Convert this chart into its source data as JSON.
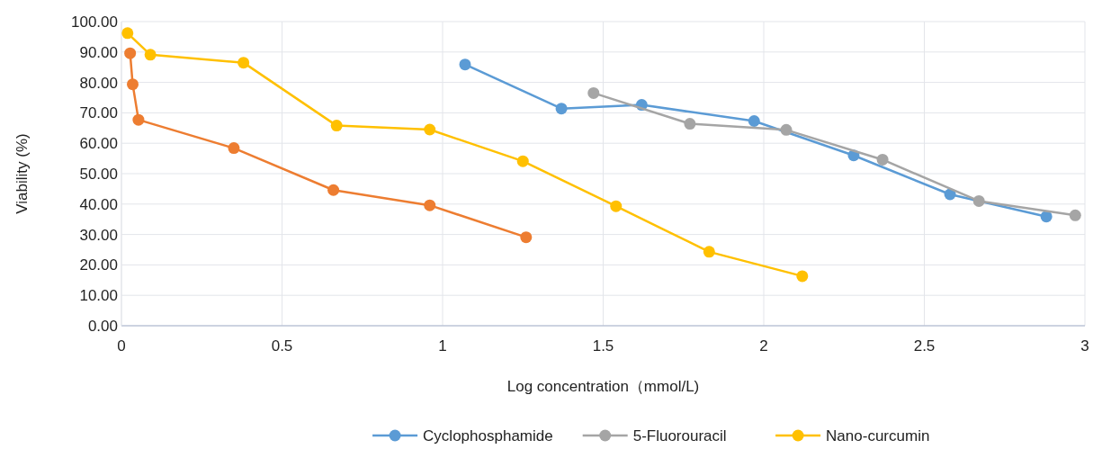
{
  "chart_data": {
    "type": "line",
    "xlabel": "Log concentration（mmol/L)",
    "ylabel": "Viability (%)",
    "xlim": [
      0,
      3
    ],
    "xticks": [
      0,
      0.5,
      1,
      1.5,
      2,
      2.5,
      3
    ],
    "ylim": [
      0,
      100
    ],
    "yticks": [
      {
        "value": 0,
        "label": "0.00"
      },
      {
        "value": 10,
        "label": "10.00"
      },
      {
        "value": 20,
        "label": "20.00"
      },
      {
        "value": 30,
        "label": "30.00"
      },
      {
        "value": 40,
        "label": "40.00"
      },
      {
        "value": 50,
        "label": "50.00"
      },
      {
        "value": 60,
        "label": "60.00"
      },
      {
        "value": 70,
        "label": "70.00"
      },
      {
        "value": 80,
        "label": "80.00"
      },
      {
        "value": 90,
        "label": "90.00"
      },
      {
        "value": 100,
        "label": "100.00"
      }
    ],
    "grid": true,
    "legend": "bottom",
    "marker": "circle",
    "line_style": "solid",
    "series": [
      {
        "name": "Cyclophosphamide",
        "color": "#5b9bd5",
        "x": [
          1.07,
          1.37,
          1.62,
          1.97,
          2.28,
          2.58,
          2.88
        ],
        "values": [
          85.9,
          71.4,
          72.6,
          67.3,
          56.0,
          43.2,
          35.9
        ]
      },
      {
        "color": "#ed7d31",
        "x": [
          0.027,
          0.035,
          0.053,
          0.35,
          0.66,
          0.96,
          1.26
        ],
        "values": [
          89.6,
          79.4,
          67.7,
          58.4,
          44.6,
          39.6,
          29.1
        ]
      },
      {
        "name": "5-Fluorouracil",
        "color": "#a5a5a5",
        "x": [
          1.47,
          1.77,
          2.07,
          2.37,
          2.67,
          2.97
        ],
        "values": [
          76.5,
          66.4,
          64.4,
          54.6,
          41.0,
          36.3
        ]
      },
      {
        "name": "Nano-curcumin",
        "color": "#ffc000",
        "x": [
          0.019,
          0.09,
          0.38,
          0.67,
          0.96,
          1.25,
          1.54,
          1.83,
          2.12
        ],
        "values": [
          96.2,
          89.1,
          86.5,
          65.8,
          64.5,
          54.1,
          39.3,
          24.3,
          16.3
        ]
      }
    ]
  }
}
